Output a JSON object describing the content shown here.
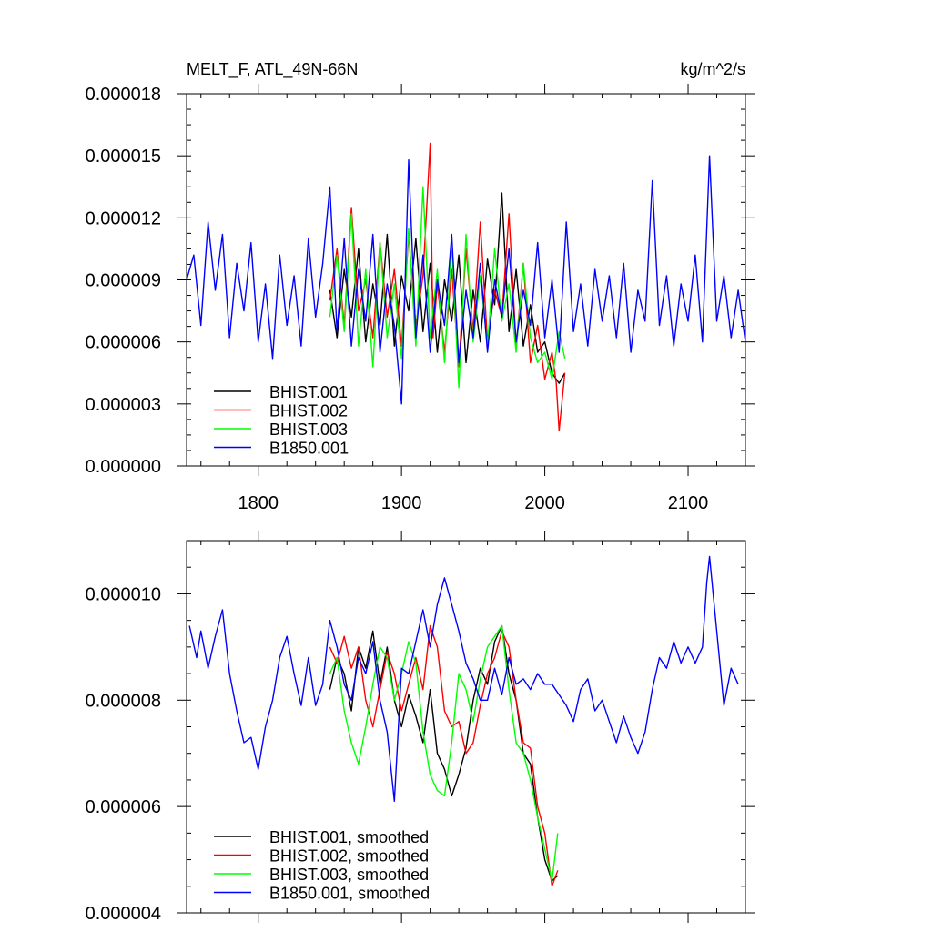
{
  "chart_data": [
    {
      "type": "line",
      "title_left": "MELT_F, ATL_49N-66N",
      "title_right": "kg/m^2/s",
      "xlabel": "",
      "ylabel": "",
      "xlim": [
        1750,
        2140
      ],
      "ylim": [
        0.0,
        1.8e-05
      ],
      "xticks": [
        1800,
        1900,
        2000,
        2100
      ],
      "xtick_labels": [
        "1800",
        "1900",
        "2000",
        "2100"
      ],
      "yticks": [
        0.0,
        3e-06,
        6e-06,
        9e-06,
        1.2e-05,
        1.5e-05,
        1.8e-05
      ],
      "ytick_labels": [
        "0.000000",
        "0.000003",
        "0.000006",
        "0.000009",
        "0.000012",
        "0.000015",
        "0.000018"
      ],
      "legend_position": "bottom-left",
      "series": [
        {
          "name": "BHIST.001",
          "color": "#000000",
          "x": [
            1850,
            1855,
            1860,
            1865,
            1870,
            1875,
            1880,
            1885,
            1890,
            1895,
            1900,
            1905,
            1910,
            1915,
            1920,
            1925,
            1930,
            1935,
            1940,
            1945,
            1950,
            1955,
            1960,
            1965,
            1970,
            1975,
            1980,
            1985,
            1990,
            1995,
            2000,
            2005,
            2010,
            2014
          ],
          "y": [
            8.5e-06,
            6.2e-06,
            9.5e-06,
            7.2e-06,
            1.05e-05,
            6e-06,
            8.8e-06,
            6.8e-06,
            1.12e-05,
            5.8e-06,
            9.2e-06,
            7.5e-06,
            1.1e-05,
            6.5e-06,
            9.8e-06,
            5.5e-06,
            9e-06,
            7e-06,
            1.02e-05,
            5e-06,
            8.5e-06,
            6e-06,
            1e-05,
            7.8e-06,
            1.32e-05,
            6.5e-06,
            9.5e-06,
            5.8e-06,
            7.8e-06,
            5.5e-06,
            6e-06,
            4.5e-06,
            4e-06,
            4.5e-06
          ]
        },
        {
          "name": "BHIST.002",
          "color": "#ff0000",
          "x": [
            1850,
            1855,
            1860,
            1865,
            1870,
            1875,
            1880,
            1885,
            1890,
            1895,
            1900,
            1905,
            1910,
            1915,
            1920,
            1922,
            1925,
            1930,
            1935,
            1940,
            1945,
            1950,
            1955,
            1960,
            1965,
            1970,
            1975,
            1980,
            1985,
            1990,
            1995,
            2000,
            2005,
            2008,
            2010,
            2014
          ],
          "y": [
            8e-06,
            1.05e-05,
            6.8e-06,
            1.25e-05,
            7.5e-06,
            9e-06,
            6.2e-06,
            1.08e-05,
            7.2e-06,
            9.5e-06,
            5.8e-06,
            1.12e-05,
            6.8e-06,
            9.2e-06,
            1.56e-05,
            6.2e-06,
            8.8e-06,
            5.5e-06,
            9.5e-06,
            4.8e-06,
            1.05e-05,
            6.5e-06,
            1.18e-05,
            6e-06,
            8.5e-06,
            7.2e-06,
            1.22e-05,
            5.8e-06,
            9.8e-06,
            5e-06,
            6.8e-06,
            4.2e-06,
            5.5e-06,
            4e-06,
            1.7e-06,
            4.5e-06
          ]
        },
        {
          "name": "BHIST.003",
          "color": "#00ff00",
          "x": [
            1850,
            1855,
            1860,
            1865,
            1870,
            1875,
            1880,
            1885,
            1890,
            1895,
            1900,
            1905,
            1910,
            1915,
            1920,
            1925,
            1930,
            1935,
            1940,
            1945,
            1950,
            1955,
            1960,
            1965,
            1970,
            1975,
            1980,
            1985,
            1990,
            1995,
            2000,
            2005,
            2010,
            2014
          ],
          "y": [
            7.2e-06,
            1.02e-05,
            6.5e-06,
            1.22e-05,
            5.8e-06,
            9.5e-06,
            4.8e-06,
            1.08e-05,
            6.2e-06,
            8.8e-06,
            5.2e-06,
            1.15e-05,
            5.8e-06,
            1.35e-05,
            6.2e-06,
            9.5e-06,
            5e-06,
            1.08e-05,
            3.8e-06,
            1.12e-05,
            6e-06,
            9.2e-06,
            5.8e-06,
            1.05e-05,
            7e-06,
            8.8e-06,
            5.5e-06,
            9.8e-06,
            6.2e-06,
            5e-06,
            5.5e-06,
            4.2e-06,
            6.5e-06,
            5.2e-06
          ]
        },
        {
          "name": "B1850.001",
          "color": "#0000ff",
          "x": [
            1750,
            1755,
            1760,
            1765,
            1770,
            1775,
            1780,
            1785,
            1790,
            1795,
            1800,
            1805,
            1810,
            1815,
            1820,
            1825,
            1830,
            1835,
            1840,
            1845,
            1850,
            1855,
            1860,
            1865,
            1870,
            1875,
            1880,
            1885,
            1890,
            1895,
            1900,
            1905,
            1910,
            1915,
            1920,
            1925,
            1930,
            1935,
            1940,
            1945,
            1950,
            1955,
            1960,
            1965,
            1970,
            1975,
            1980,
            1985,
            1990,
            1995,
            2000,
            2005,
            2010,
            2015,
            2020,
            2025,
            2030,
            2035,
            2040,
            2045,
            2050,
            2055,
            2060,
            2065,
            2070,
            2075,
            2080,
            2085,
            2090,
            2095,
            2100,
            2105,
            2110,
            2115,
            2120,
            2125,
            2130,
            2135,
            2140
          ],
          "y": [
            9e-06,
            1.02e-05,
            6.8e-06,
            1.18e-05,
            8.5e-06,
            1.12e-05,
            6.2e-06,
            9.8e-06,
            7.5e-06,
            1.08e-05,
            6e-06,
            8.8e-06,
            5.2e-06,
            1.02e-05,
            6.8e-06,
            9.2e-06,
            5.8e-06,
            1.1e-05,
            7.2e-06,
            9.8e-06,
            1.35e-05,
            6.5e-06,
            1.1e-05,
            5.8e-06,
            9.5e-06,
            7e-06,
            1.12e-05,
            5.5e-06,
            8.8e-06,
            6.8e-06,
            3e-06,
            1.48e-05,
            6.2e-06,
            1.02e-05,
            5.5e-06,
            9e-06,
            6.8e-06,
            1.12e-05,
            5e-06,
            8.5e-06,
            6.2e-06,
            9.8e-06,
            5.5e-06,
            9e-06,
            7.2e-06,
            1.05e-05,
            6e-06,
            8.5e-06,
            6.8e-06,
            1.08e-05,
            6.2e-06,
            9e-06,
            5.5e-06,
            1.18e-05,
            6.5e-06,
            8.8e-06,
            5.8e-06,
            9.5e-06,
            7e-06,
            9.2e-06,
            6.2e-06,
            9.8e-06,
            5.5e-06,
            8.5e-06,
            7e-06,
            1.38e-05,
            6.8e-06,
            9.2e-06,
            5.8e-06,
            8.8e-06,
            7e-06,
            1.02e-05,
            6e-06,
            1.5e-05,
            7e-06,
            9.2e-06,
            6.2e-06,
            8.5e-06,
            6e-06
          ]
        }
      ]
    },
    {
      "type": "line",
      "title_left": "",
      "title_right": "",
      "xlabel": "",
      "ylabel": "",
      "xlim": [
        1750,
        2140
      ],
      "ylim": [
        4e-06,
        1.1e-05
      ],
      "xticks": [
        1800,
        1900,
        2000,
        2100
      ],
      "yticks": [
        4e-06,
        6e-06,
        8e-06,
        1e-05
      ],
      "ytick_labels": [
        "0.000004",
        "0.000006",
        "0.000008",
        "0.000010"
      ],
      "legend_position": "bottom-left",
      "series": [
        {
          "name": "BHIST.001, smoothed",
          "color": "#000000",
          "x": [
            1850,
            1855,
            1860,
            1865,
            1870,
            1875,
            1880,
            1885,
            1890,
            1895,
            1900,
            1905,
            1910,
            1915,
            1920,
            1925,
            1930,
            1935,
            1940,
            1945,
            1950,
            1955,
            1960,
            1965,
            1970,
            1975,
            1980,
            1985,
            1990,
            1995,
            2000,
            2005,
            2009
          ],
          "y": [
            8.2e-06,
            8.8e-06,
            8.5e-06,
            7.8e-06,
            9e-06,
            8.6e-06,
            9.3e-06,
            8.3e-06,
            9e-06,
            8e-06,
            7.5e-06,
            8.1e-06,
            7.7e-06,
            7.2e-06,
            8.2e-06,
            7e-06,
            6.7e-06,
            6.2e-06,
            6.6e-06,
            7.1e-06,
            8e-06,
            8.6e-06,
            8.3e-06,
            9.1e-06,
            9.4e-06,
            8.5e-06,
            8e-06,
            7e-06,
            6.8e-06,
            5.8e-06,
            5e-06,
            4.6e-06,
            4.7e-06
          ]
        },
        {
          "name": "BHIST.002, smoothed",
          "color": "#ff0000",
          "x": [
            1850,
            1855,
            1860,
            1865,
            1870,
            1875,
            1880,
            1885,
            1890,
            1895,
            1900,
            1905,
            1910,
            1915,
            1920,
            1925,
            1930,
            1935,
            1940,
            1945,
            1950,
            1955,
            1960,
            1965,
            1970,
            1975,
            1980,
            1985,
            1990,
            1995,
            2000,
            2005,
            2009
          ],
          "y": [
            9e-06,
            8.7e-06,
            9.2e-06,
            8.6e-06,
            9e-06,
            8e-06,
            7.5e-06,
            8.2e-06,
            8.9e-06,
            8.5e-06,
            7.8e-06,
            8.3e-06,
            8.8e-06,
            8.2e-06,
            9.4e-06,
            9e-06,
            7.8e-06,
            7.5e-06,
            7.6e-06,
            7e-06,
            7.2e-06,
            7.9e-06,
            8.5e-06,
            8.8e-06,
            9.3e-06,
            9e-06,
            8e-06,
            7.2e-06,
            7.1e-06,
            6e-06,
            5.5e-06,
            4.5e-06,
            4.8e-06
          ]
        },
        {
          "name": "BHIST.003, smoothed",
          "color": "#00ff00",
          "x": [
            1850,
            1855,
            1860,
            1865,
            1870,
            1875,
            1880,
            1885,
            1890,
            1895,
            1900,
            1905,
            1910,
            1915,
            1920,
            1925,
            1930,
            1935,
            1940,
            1945,
            1950,
            1955,
            1960,
            1965,
            1970,
            1975,
            1980,
            1985,
            1990,
            1995,
            2000,
            2005,
            2009
          ],
          "y": [
            8.5e-06,
            8.8e-06,
            7.8e-06,
            7.2e-06,
            6.8e-06,
            7.5e-06,
            8.3e-06,
            9e-06,
            8.8e-06,
            8e-06,
            8.5e-06,
            9.1e-06,
            8.7e-06,
            7.4e-06,
            6.6e-06,
            6.3e-06,
            6.2e-06,
            7.2e-06,
            8.5e-06,
            8.2e-06,
            7.6e-06,
            8.4e-06,
            9e-06,
            9.2e-06,
            9.4e-06,
            8.2e-06,
            7.2e-06,
            7e-06,
            6.5e-06,
            5.8e-06,
            5.2e-06,
            4.6e-06,
            5.5e-06
          ]
        },
        {
          "name": "B1850.001, smoothed",
          "color": "#0000ff",
          "x": [
            1752,
            1757,
            1760,
            1765,
            1770,
            1775,
            1780,
            1785,
            1790,
            1795,
            1800,
            1805,
            1810,
            1815,
            1820,
            1825,
            1830,
            1835,
            1840,
            1845,
            1850,
            1855,
            1860,
            1865,
            1870,
            1875,
            1880,
            1885,
            1890,
            1895,
            1900,
            1905,
            1910,
            1915,
            1920,
            1925,
            1930,
            1935,
            1940,
            1945,
            1950,
            1955,
            1960,
            1965,
            1970,
            1975,
            1980,
            1985,
            1990,
            1995,
            2000,
            2005,
            2010,
            2015,
            2020,
            2025,
            2030,
            2035,
            2040,
            2045,
            2050,
            2055,
            2060,
            2065,
            2070,
            2075,
            2080,
            2085,
            2090,
            2095,
            2100,
            2105,
            2110,
            2113,
            2115,
            2120,
            2125,
            2130,
            2135
          ],
          "y": [
            9.4e-06,
            8.8e-06,
            9.3e-06,
            8.6e-06,
            9.2e-06,
            9.7e-06,
            8.5e-06,
            7.8e-06,
            7.2e-06,
            7.3e-06,
            6.7e-06,
            7.5e-06,
            8e-06,
            8.8e-06,
            9.2e-06,
            8.5e-06,
            7.9e-06,
            8.8e-06,
            7.9e-06,
            8.3e-06,
            9.5e-06,
            9e-06,
            8.3e-06,
            8e-06,
            8.8e-06,
            8.5e-06,
            9.1e-06,
            8e-06,
            7.4e-06,
            6.1e-06,
            8.6e-06,
            8.5e-06,
            9.1e-06,
            9.7e-06,
            9e-06,
            9.8e-06,
            1.03e-05,
            9.8e-06,
            9.3e-06,
            8.7e-06,
            8.4e-06,
            8e-06,
            8e-06,
            8.6e-06,
            8.1e-06,
            8.8e-06,
            8.3e-06,
            8.4e-06,
            8.2e-06,
            8.5e-06,
            8.3e-06,
            8.3e-06,
            8.1e-06,
            7.9e-06,
            7.6e-06,
            8.2e-06,
            8.4e-06,
            7.8e-06,
            8e-06,
            7.6e-06,
            7.2e-06,
            7.7e-06,
            7.3e-06,
            7e-06,
            7.4e-06,
            8.2e-06,
            8.8e-06,
            8.6e-06,
            9.1e-06,
            8.7e-06,
            9e-06,
            8.7e-06,
            9e-06,
            1.02e-05,
            1.07e-05,
            9.3e-06,
            7.9e-06,
            8.6e-06,
            8.3e-06
          ]
        }
      ]
    }
  ]
}
